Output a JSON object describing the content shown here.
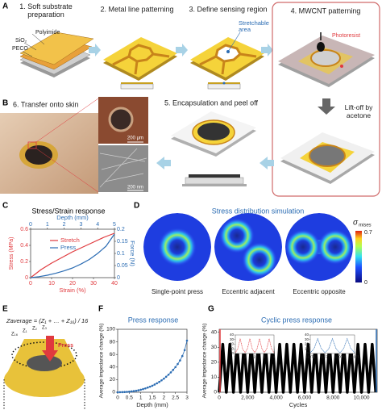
{
  "panel_a": {
    "label": "A",
    "step_1": "1. Soft substrate preparation",
    "step_2": "2. Metal line patterning",
    "step_3": "3. Define sensing region",
    "step_4": "4. MWCNT patterning",
    "step_5": "5. Encapsulation and peel off",
    "layers": [
      "Polyimide",
      "SiO₂",
      "PECO"
    ],
    "stretchable": "Stretchable area",
    "photoresist": "Photoresist",
    "liftoff": "Lift-off by acetone"
  },
  "panel_b": {
    "label": "B",
    "step_6": "6. Transfer onto skin",
    "scale_1": "200 μm",
    "scale_2": "200 nm"
  },
  "panel_d": {
    "label": "D",
    "title": "Stress distribution simulation",
    "cases": [
      "Single-point press",
      "Eccentric adjacent",
      "Eccentric opposite"
    ],
    "colorbar": {
      "symbol": "σ",
      "subscript": "mises",
      "max": 0.7,
      "min": 0
    }
  },
  "panel_e": {
    "label": "E",
    "formula": "Zaverage = (Z₁ + … + Z₁₆) / 16",
    "electrodes": [
      "Z₁₆",
      "Z₁",
      "Z₂",
      "Z₃"
    ],
    "press": "Press"
  },
  "chart_data": [
    {
      "type": "line",
      "label": "C",
      "title": "Stress/Strain response",
      "xlabel": "Strain (%)",
      "x2label": "Depth (mm)",
      "ylabel": "Stress (MPa)",
      "y2label": "Force (N)",
      "xlim": [
        0,
        40
      ],
      "xticks": [
        0,
        10,
        20,
        30,
        40
      ],
      "x2lim": [
        0,
        5
      ],
      "x2ticks": [
        0,
        1,
        2,
        3,
        4,
        5
      ],
      "ylim": [
        0,
        0.6
      ],
      "yticks": [
        0,
        0.2,
        0.4,
        0.6
      ],
      "y2lim": [
        0,
        0.2
      ],
      "y2ticks": [
        0,
        0.05,
        0.1,
        0.15,
        0.2
      ],
      "legend": "upper left",
      "series": [
        {
          "name": "Stretch",
          "color": "#e03a3e",
          "x": [
            0,
            5,
            10,
            15,
            20,
            25,
            30,
            35,
            40
          ],
          "values": [
            0,
            0.1,
            0.18,
            0.25,
            0.32,
            0.38,
            0.44,
            0.5,
            0.55
          ]
        },
        {
          "name": "Press",
          "color": "#2b6cb3",
          "xaxis": "x2",
          "axis": "y2",
          "x": [
            0,
            0.5,
            1,
            1.5,
            2,
            2.5,
            3,
            3.5,
            4,
            4.5,
            5
          ],
          "values": [
            0,
            0.004,
            0.01,
            0.018,
            0.028,
            0.04,
            0.056,
            0.075,
            0.1,
            0.13,
            0.18
          ]
        }
      ]
    },
    {
      "type": "line",
      "label": "F",
      "title": "Press response",
      "xlabel": "Depth (mm)",
      "ylabel": "Average impedance change (%)",
      "xlim": [
        0,
        3
      ],
      "xticks": [
        0,
        0.5,
        1,
        1.5,
        2,
        2.5,
        3
      ],
      "ylim": [
        0,
        100
      ],
      "yticks": [
        0,
        20,
        40,
        60,
        80,
        100
      ],
      "markers": true,
      "series": [
        {
          "color": "#2b6cb3",
          "x": [
            0,
            0.1,
            0.2,
            0.3,
            0.4,
            0.5,
            0.6,
            0.7,
            0.8,
            0.9,
            1,
            1.1,
            1.2,
            1.3,
            1.4,
            1.5,
            1.6,
            1.7,
            1.8,
            1.9,
            2,
            2.1,
            2.2,
            2.3,
            2.4,
            2.5,
            2.6,
            2.7,
            2.8,
            2.9,
            3
          ],
          "values": [
            0,
            0.1,
            0.2,
            0.4,
            0.6,
            0.9,
            1.3,
            1.8,
            2.4,
            3.1,
            4,
            5,
            6.1,
            7.4,
            8.8,
            10.4,
            12.2,
            14.2,
            16.4,
            18.9,
            21.6,
            24.6,
            27.9,
            31.5,
            35.5,
            39.9,
            44.8,
            50.5,
            57.5,
            67,
            82
          ]
        }
      ]
    },
    {
      "type": "line",
      "label": "G",
      "title": "Cyclic press response",
      "xlabel": "Cycles",
      "ylabel": "Average impedance change (%)",
      "xlim": [
        0,
        11100
      ],
      "xticks": [
        0,
        {
          "value": 2000,
          "label": "2,000"
        },
        {
          "value": 4000,
          "label": "4,000"
        },
        {
          "value": 6000,
          "label": "6,000"
        },
        {
          "value": 8000,
          "label": "8,000"
        },
        {
          "value": 10000,
          "label": "10,000"
        }
      ],
      "ylim": [
        0,
        42
      ],
      "yticks": [
        0,
        10,
        20,
        30,
        40
      ],
      "series": [
        {
          "color": "#000000",
          "x": [
            0,
            250,
            500,
            750,
            1000,
            1250,
            1500,
            1750,
            2000,
            2250,
            2500,
            2750,
            3000,
            3250,
            3500,
            3750,
            4000,
            4250,
            4500,
            4750,
            5000,
            5250,
            5500,
            5750,
            6000,
            6250,
            6500,
            6750,
            7000,
            7250,
            7500,
            7750,
            8000,
            8250,
            8500,
            8750,
            9000,
            9250,
            9500,
            9750,
            10000,
            10250,
            10500,
            10750,
            11000
          ],
          "values": [
            0,
            32,
            0,
            32,
            0,
            32,
            0,
            32,
            0,
            32,
            0,
            32,
            0,
            32,
            0,
            32,
            0,
            32,
            0,
            32,
            0,
            32,
            0,
            32,
            0,
            32,
            0,
            32,
            0,
            32,
            0,
            32,
            0,
            32,
            0,
            32,
            0,
            32,
            0,
            32,
            0,
            32,
            0,
            32,
            0
          ]
        }
      ],
      "insets": [
        {
          "color": "#e03a3e",
          "xlim": [
            0,
            4
          ],
          "xticks": [
            0,
            1,
            2,
            3,
            4
          ],
          "ylim": [
            0,
            40
          ],
          "yticks": [
            0,
            10,
            20,
            30,
            40
          ],
          "x": [
            0,
            0.25,
            0.5,
            0.75,
            1,
            1.25,
            1.5,
            1.75,
            2,
            2.25,
            2.5,
            2.75,
            3,
            3.25,
            3.5,
            3.75,
            4
          ],
          "values": [
            2,
            10,
            32,
            10,
            2,
            10,
            32,
            10,
            2,
            10,
            32,
            10,
            2,
            10,
            32,
            10,
            2
          ]
        },
        {
          "color": "#2b6cb3",
          "xlim": [
            11076,
            11079
          ],
          "xticks": [
            11076,
            11077,
            11078,
            11079
          ],
          "ylim": [
            0,
            40
          ],
          "yticks": [
            0,
            10,
            20,
            30,
            40
          ],
          "x": [
            11076,
            11076.25,
            11076.5,
            11076.75,
            11077,
            11077.25,
            11077.5,
            11077.75,
            11078,
            11078.25,
            11078.5,
            11078.75,
            11079
          ],
          "values": [
            2,
            10,
            32,
            10,
            2,
            10,
            32,
            10,
            2,
            10,
            32,
            10,
            2
          ]
        }
      ]
    }
  ]
}
